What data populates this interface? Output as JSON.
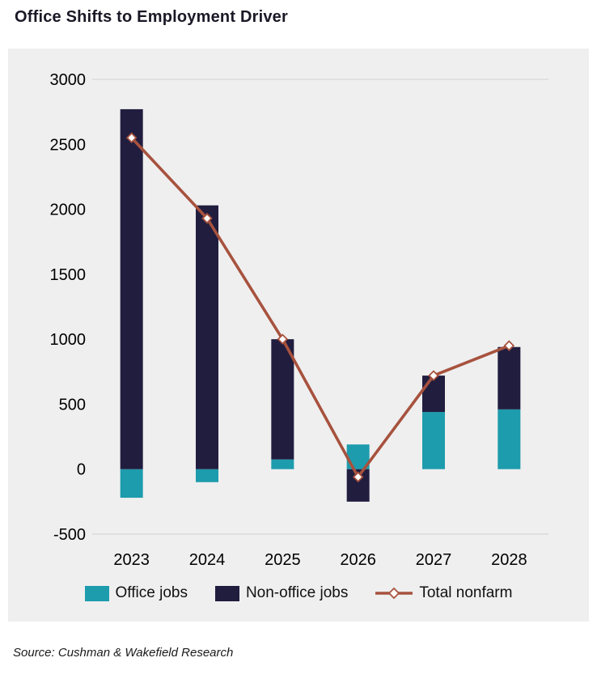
{
  "title": "Office Shifts to Employment Driver",
  "source": "Source: Cushman & Wakefield Research",
  "legend": [
    {
      "label": "Office jobs",
      "marker": "square",
      "color": "#1d9cad"
    },
    {
      "label": "Non-office jobs",
      "marker": "square",
      "color": "#211d3f"
    },
    {
      "label": "Total nonfarm",
      "marker": "line-diamond",
      "color": "#a7523e"
    }
  ],
  "colors": {
    "plot_background": "#efefef",
    "gridline": "#d6d6d6",
    "axis_text": "#000000"
  },
  "chart_data": {
    "type": "bar",
    "subtype": "stacked-bar-with-line",
    "title": "Office Shifts to Employment Driver",
    "categories": [
      "2023",
      "2024",
      "2025",
      "2026",
      "2027",
      "2028"
    ],
    "series": [
      {
        "name": "Office jobs",
        "type": "bar",
        "color": "#1d9cad",
        "values": [
          -220,
          -100,
          75,
          190,
          440,
          460
        ]
      },
      {
        "name": "Non-office jobs",
        "type": "bar",
        "color": "#211d3f",
        "values": [
          2770,
          2030,
          925,
          -250,
          280,
          480
        ]
      },
      {
        "name": "Total nonfarm",
        "type": "line",
        "color": "#a7523e",
        "marker": "open-diamond",
        "values": [
          2550,
          1930,
          1000,
          -60,
          720,
          950
        ]
      }
    ],
    "xlabel": "",
    "ylabel": "",
    "yticks": [
      3000,
      2500,
      2000,
      1500,
      1000,
      500,
      0,
      -500
    ],
    "ylim": [
      -500,
      3000
    ],
    "grid": "top-and-bottom-lines-only",
    "legend_position": "bottom"
  }
}
